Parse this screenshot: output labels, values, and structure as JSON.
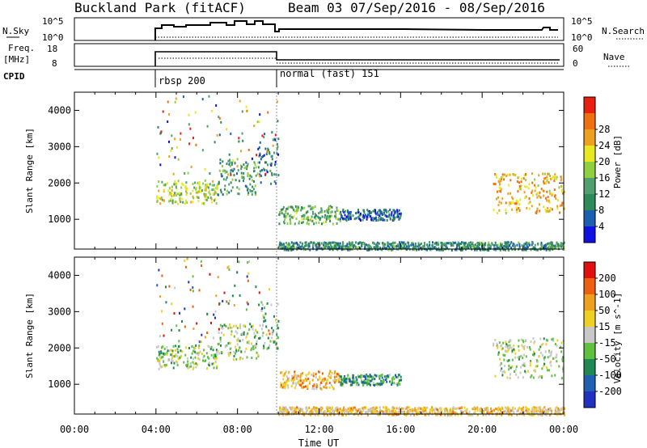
{
  "header": {
    "site": "Buckland Park (fitACF)",
    "beam_dates": "Beam 03  07/Sep/2016 - 08/Sep/2016"
  },
  "strip": {
    "nsky_label": "N.Sky",
    "nsky_top": "10^5",
    "nsky_bottom": "10^0",
    "nsearch_label": "N.Search",
    "nsearch_top": "10^5",
    "nsearch_bottom": "10^0",
    "freq_label": "Freq.",
    "freq_unit": "[MHz]",
    "freq_top": "18",
    "freq_bottom": "8",
    "nave_label": "Nave",
    "nave_top": "60",
    "nave_bottom": "0",
    "cpid_label": "CPID",
    "cpid_programs": [
      {
        "name": "rbsp 200",
        "start_hour": 4
      },
      {
        "name": "normal (fast) 151",
        "start_hour": 10
      }
    ]
  },
  "chart_data": [
    {
      "type": "heatmap",
      "name": "power",
      "ylabel": "Slant Range [km]",
      "xlabel": "",
      "xlim": [
        0,
        24
      ],
      "ylim": [
        180,
        4500
      ],
      "yticks": [
        "1000",
        "2000",
        "3000",
        "4000"
      ],
      "colorbar_label": "Power [dB]",
      "colorbar_ticks": [
        "4",
        "8",
        "12",
        "16",
        "20",
        "24",
        "28"
      ],
      "colorbar_colors": [
        "#1010e0",
        "#1b5fb0",
        "#2e8b57",
        "#4f9f6f",
        "#90d040",
        "#e8e820",
        "#f0a020",
        "#ee7010",
        "#e82010"
      ],
      "echo_regions": [
        {
          "t0": 4.0,
          "t1": 7.0,
          "r0": 1450,
          "r1": 2100,
          "level": 0.55
        },
        {
          "t0": 7.0,
          "t1": 9.0,
          "r0": 1700,
          "r1": 2700,
          "level": 0.35
        },
        {
          "t0": 9.0,
          "t1": 10.0,
          "r0": 2000,
          "r1": 3300,
          "level": 0.25
        },
        {
          "t0": 10.0,
          "t1": 13.0,
          "r0": 900,
          "r1": 1400,
          "level": 0.4
        },
        {
          "t0": 13.0,
          "t1": 16.0,
          "r0": 1000,
          "r1": 1300,
          "level": 0.2
        },
        {
          "t0": 20.5,
          "t1": 24.0,
          "r0": 1200,
          "r1": 2300,
          "level": 0.7
        },
        {
          "t0": 10.0,
          "t1": 24.0,
          "r0": 180,
          "r1": 400,
          "level": 0.3
        }
      ]
    },
    {
      "type": "heatmap",
      "name": "velocity",
      "ylabel": "Slant Range [km]",
      "xlabel": "Time UT",
      "xlim": [
        0,
        24
      ],
      "ylim": [
        180,
        4500
      ],
      "xticks": [
        "00:00",
        "04:00",
        "08:00",
        "12:00",
        "16:00",
        "20:00",
        "00:00"
      ],
      "yticks": [
        "1000",
        "2000",
        "3000",
        "4000"
      ],
      "colorbar_label": "Velocity [m s^-1]",
      "colorbar_ticks": [
        "200",
        "100",
        "50",
        "15",
        "-15",
        "-50",
        "-100",
        "-200"
      ],
      "colorbar_colors": [
        "#2030c0",
        "#2060b0",
        "#208850",
        "#60c040",
        "#c8c8c8",
        "#f0d020",
        "#f0a020",
        "#ee6010",
        "#e01010"
      ],
      "echo_regions": [
        {
          "t0": 4.0,
          "t1": 7.0,
          "r0": 1450,
          "r1": 2100,
          "level": 0.45
        },
        {
          "t0": 7.0,
          "t1": 9.0,
          "r0": 1700,
          "r1": 2700,
          "level": 0.45
        },
        {
          "t0": 9.0,
          "t1": 10.0,
          "r0": 2000,
          "r1": 3300,
          "level": 0.4
        },
        {
          "t0": 10.0,
          "t1": 13.0,
          "r0": 900,
          "r1": 1400,
          "level": 0.68
        },
        {
          "t0": 13.0,
          "t1": 16.0,
          "r0": 1000,
          "r1": 1300,
          "level": 0.3
        },
        {
          "t0": 20.5,
          "t1": 24.0,
          "r0": 1200,
          "r1": 2300,
          "level": 0.45
        },
        {
          "t0": 10.0,
          "t1": 24.0,
          "r0": 180,
          "r1": 400,
          "level": 0.62
        }
      ]
    }
  ]
}
